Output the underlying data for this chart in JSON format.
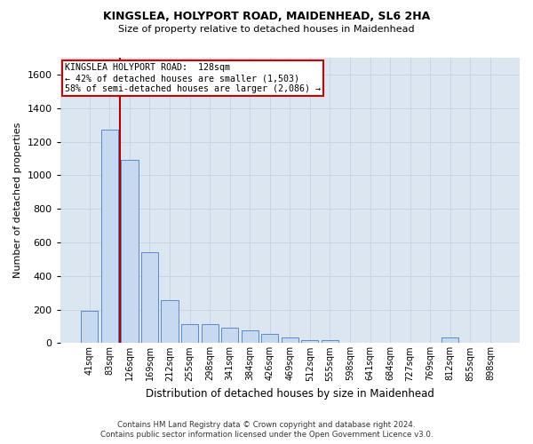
{
  "title1": "KINGSLEA, HOLYPORT ROAD, MAIDENHEAD, SL6 2HA",
  "title2": "Size of property relative to detached houses in Maidenhead",
  "xlabel": "Distribution of detached houses by size in Maidenhead",
  "ylabel": "Number of detached properties",
  "categories": [
    "41sqm",
    "83sqm",
    "126sqm",
    "169sqm",
    "212sqm",
    "255sqm",
    "298sqm",
    "341sqm",
    "384sqm",
    "426sqm",
    "469sqm",
    "512sqm",
    "555sqm",
    "598sqm",
    "641sqm",
    "684sqm",
    "727sqm",
    "769sqm",
    "812sqm",
    "855sqm",
    "898sqm"
  ],
  "values": [
    190,
    1270,
    1090,
    540,
    255,
    115,
    115,
    90,
    75,
    55,
    35,
    20,
    20,
    0,
    0,
    0,
    0,
    0,
    35,
    0,
    0
  ],
  "bar_color": "#c6d9f0",
  "bar_edge_color": "#5a8ac6",
  "grid_color": "#c8d4e4",
  "background_color": "#dce6f1",
  "annotation_text": "KINGSLEA HOLYPORT ROAD:  128sqm\n← 42% of detached houses are smaller (1,503)\n58% of semi-detached houses are larger (2,086) →",
  "vline_x": 1.5,
  "vline_color": "#aa0000",
  "box_color": "#cc0000",
  "ylim": [
    0,
    1700
  ],
  "yticks": [
    0,
    200,
    400,
    600,
    800,
    1000,
    1200,
    1400,
    1600
  ],
  "footer1": "Contains HM Land Registry data © Crown copyright and database right 2024.",
  "footer2": "Contains public sector information licensed under the Open Government Licence v3.0."
}
